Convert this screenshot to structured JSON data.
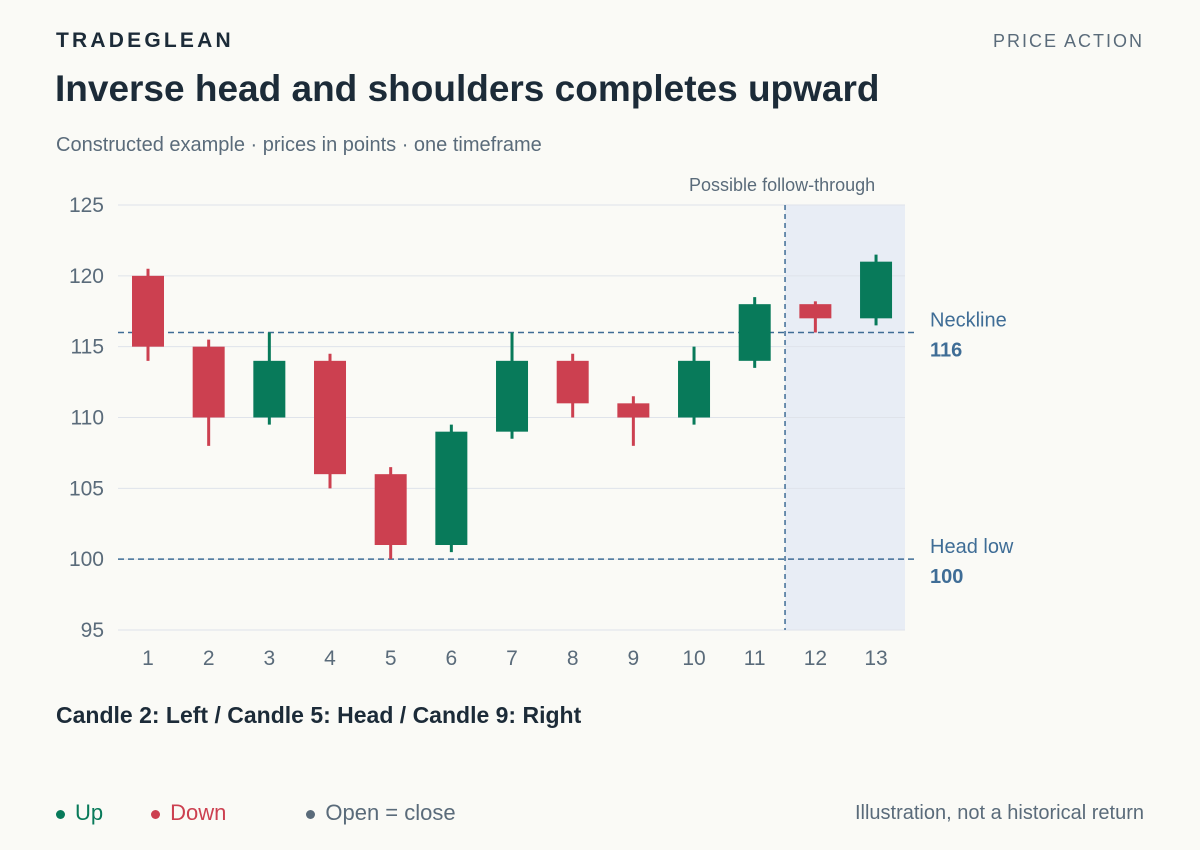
{
  "header": {
    "brand": "TRADEGLEAN",
    "section": "PRICE ACTION",
    "title": "Inverse head and shoulders completes upward",
    "subtitle": "Constructed example · prices in points · one timeframe"
  },
  "colors": {
    "up": "#087a5a",
    "down": "#cc4050",
    "flat": "#5a6b7a",
    "reference_line": "#3f6d96",
    "follow_through_zone": "#e8edf5"
  },
  "chart_data": {
    "type": "candlestick",
    "ylim": [
      95,
      125
    ],
    "yticks": [
      95,
      100,
      105,
      110,
      115,
      120,
      125
    ],
    "grid": true,
    "categories": [
      "1",
      "2",
      "3",
      "4",
      "5",
      "6",
      "7",
      "8",
      "9",
      "10",
      "11",
      "12",
      "13"
    ],
    "candles": [
      {
        "x": "1",
        "open": 120,
        "high": 120.5,
        "low": 114,
        "close": 115
      },
      {
        "x": "2",
        "open": 115,
        "high": 115.5,
        "low": 108,
        "close": 110
      },
      {
        "x": "3",
        "open": 110,
        "high": 116,
        "low": 109.5,
        "close": 114
      },
      {
        "x": "4",
        "open": 114,
        "high": 114.5,
        "low": 105,
        "close": 106
      },
      {
        "x": "5",
        "open": 106,
        "high": 106.5,
        "low": 100,
        "close": 101
      },
      {
        "x": "6",
        "open": 101,
        "high": 109.5,
        "low": 100.5,
        "close": 109
      },
      {
        "x": "7",
        "open": 109,
        "high": 116,
        "low": 108.5,
        "close": 114
      },
      {
        "x": "8",
        "open": 114,
        "high": 114.5,
        "low": 110,
        "close": 111
      },
      {
        "x": "9",
        "open": 111,
        "high": 111.5,
        "low": 108,
        "close": 110
      },
      {
        "x": "10",
        "open": 110,
        "high": 115,
        "low": 109.5,
        "close": 114
      },
      {
        "x": "11",
        "open": 114,
        "high": 118.5,
        "low": 113.5,
        "close": 118
      },
      {
        "x": "12",
        "open": 118,
        "high": 118.2,
        "low": 116,
        "close": 117
      },
      {
        "x": "13",
        "open": 117,
        "high": 121.5,
        "low": 116.5,
        "close": 121
      }
    ],
    "reference_lines": [
      {
        "label": "Neckline",
        "value_label": "116",
        "value": 116
      },
      {
        "label": "Head low",
        "value_label": "100",
        "value": 100
      }
    ],
    "follow_through": {
      "label": "Possible follow-through",
      "start_after": "11",
      "end": "13"
    }
  },
  "pattern_note": "Candle 2: Left / Candle 5: Head / Candle 9: Right",
  "legend": {
    "up": "Up",
    "down": "Down",
    "flat": "Open = close"
  },
  "footnote": "Illustration, not a historical return"
}
